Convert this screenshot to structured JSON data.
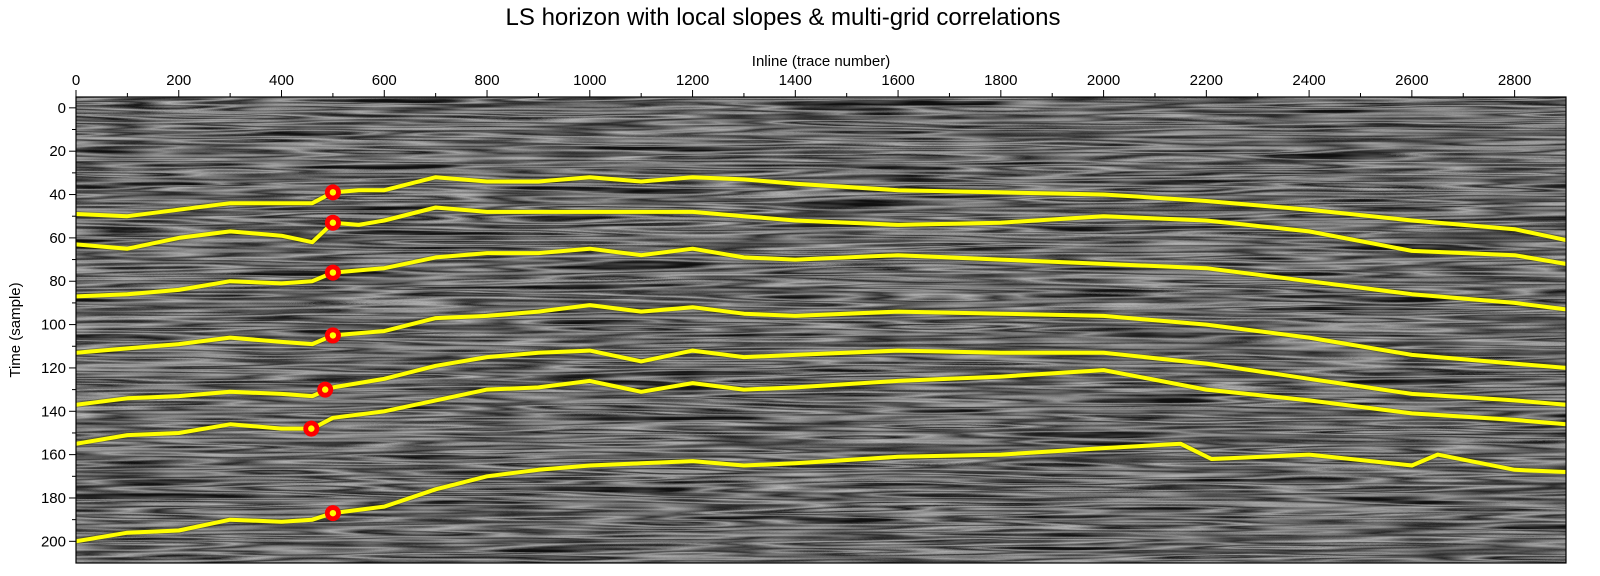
{
  "chart_data": {
    "type": "line",
    "title": "LS horizon with local slopes & multi-grid correlations",
    "xlabel": "Inline (trace number)",
    "ylabel": "Time (sample)",
    "xlim": [
      0,
      2900
    ],
    "ylim": [
      210,
      -5
    ],
    "x_axis_position": "top",
    "y_inverted": true,
    "x_ticks": [
      0,
      200,
      400,
      600,
      800,
      1000,
      1200,
      1400,
      1600,
      1800,
      2000,
      2200,
      2400,
      2600,
      2800
    ],
    "y_ticks": [
      0,
      20,
      40,
      60,
      80,
      100,
      120,
      140,
      160,
      180,
      200
    ],
    "background": "grayscale seismic section",
    "colors": {
      "horizon": "#ffff00",
      "control_point": "#ff0000",
      "control_point_center": "#ffff00"
    },
    "series": [
      {
        "x": [
          0,
          100,
          200,
          300,
          400,
          460,
          500,
          550,
          600,
          700,
          800,
          900,
          1000,
          1100,
          1200,
          1300,
          1400,
          1600,
          1800,
          2000,
          2200,
          2400,
          2600,
          2800,
          2900
        ],
        "y": [
          49,
          50,
          47,
          44,
          44,
          44,
          39,
          38,
          38,
          32,
          34,
          34,
          32,
          34,
          32,
          33,
          35,
          38,
          39,
          40,
          43,
          47,
          52,
          56,
          61
        ]
      },
      {
        "x": [
          0,
          100,
          200,
          300,
          400,
          460,
          500,
          550,
          600,
          700,
          800,
          900,
          1000,
          1100,
          1200,
          1300,
          1400,
          1600,
          1800,
          2000,
          2200,
          2400,
          2600,
          2800,
          2900
        ],
        "y": [
          63,
          65,
          60,
          57,
          59,
          62,
          53,
          54,
          52,
          46,
          48,
          48,
          48,
          48,
          48,
          50,
          52,
          54,
          53,
          50,
          52,
          57,
          66,
          68,
          72
        ]
      },
      {
        "x": [
          0,
          100,
          200,
          300,
          400,
          460,
          500,
          600,
          700,
          800,
          900,
          1000,
          1100,
          1200,
          1300,
          1400,
          1600,
          1800,
          2000,
          2200,
          2400,
          2600,
          2800,
          2900
        ],
        "y": [
          87,
          86,
          84,
          80,
          81,
          80,
          76,
          74,
          69,
          67,
          67,
          65,
          68,
          65,
          69,
          70,
          68,
          70,
          72,
          74,
          80,
          86,
          90,
          93
        ]
      },
      {
        "x": [
          0,
          100,
          200,
          300,
          400,
          460,
          500,
          600,
          700,
          800,
          900,
          1000,
          1100,
          1200,
          1300,
          1400,
          1600,
          1800,
          2000,
          2200,
          2400,
          2600,
          2800,
          2900
        ],
        "y": [
          113,
          111,
          109,
          106,
          108,
          109,
          105,
          103,
          97,
          96,
          94,
          91,
          94,
          92,
          95,
          96,
          94,
          95,
          96,
          100,
          106,
          114,
          118,
          120
        ]
      },
      {
        "x": [
          0,
          100,
          200,
          300,
          400,
          460,
          500,
          600,
          700,
          800,
          900,
          1000,
          1100,
          1200,
          1300,
          1400,
          1600,
          1800,
          2000,
          2200,
          2400,
          2600,
          2800,
          2900
        ],
        "y": [
          137,
          134,
          133,
          131,
          132,
          133,
          129,
          125,
          119,
          115,
          113,
          112,
          117,
          112,
          115,
          114,
          112,
          113,
          113,
          118,
          125,
          132,
          135,
          137
        ]
      },
      {
        "x": [
          0,
          100,
          200,
          300,
          400,
          460,
          500,
          600,
          700,
          800,
          900,
          1000,
          1100,
          1200,
          1300,
          1400,
          1600,
          1800,
          2000,
          2200,
          2400,
          2600,
          2800,
          2900
        ],
        "y": [
          155,
          151,
          150,
          146,
          148,
          148,
          143,
          140,
          135,
          130,
          129,
          126,
          131,
          127,
          130,
          129,
          126,
          124,
          121,
          130,
          135,
          141,
          144,
          146
        ]
      },
      {
        "x": [
          0,
          100,
          200,
          300,
          400,
          460,
          500,
          600,
          700,
          800,
          900,
          1000,
          1100,
          1200,
          1300,
          1400,
          1600,
          1800,
          2000,
          2150,
          2210,
          2400,
          2600,
          2650,
          2800,
          2900
        ],
        "y": [
          200,
          196,
          195,
          190,
          191,
          190,
          187,
          184,
          176,
          170,
          167,
          165,
          164,
          163,
          165,
          164,
          161,
          160,
          157,
          155,
          162,
          160,
          165,
          160,
          167,
          168
        ]
      }
    ],
    "control_points": [
      {
        "x": 500,
        "y": 39
      },
      {
        "x": 500,
        "y": 53
      },
      {
        "x": 500,
        "y": 76
      },
      {
        "x": 500,
        "y": 105
      },
      {
        "x": 485,
        "y": 130
      },
      {
        "x": 458,
        "y": 148
      },
      {
        "x": 500,
        "y": 187
      }
    ]
  }
}
